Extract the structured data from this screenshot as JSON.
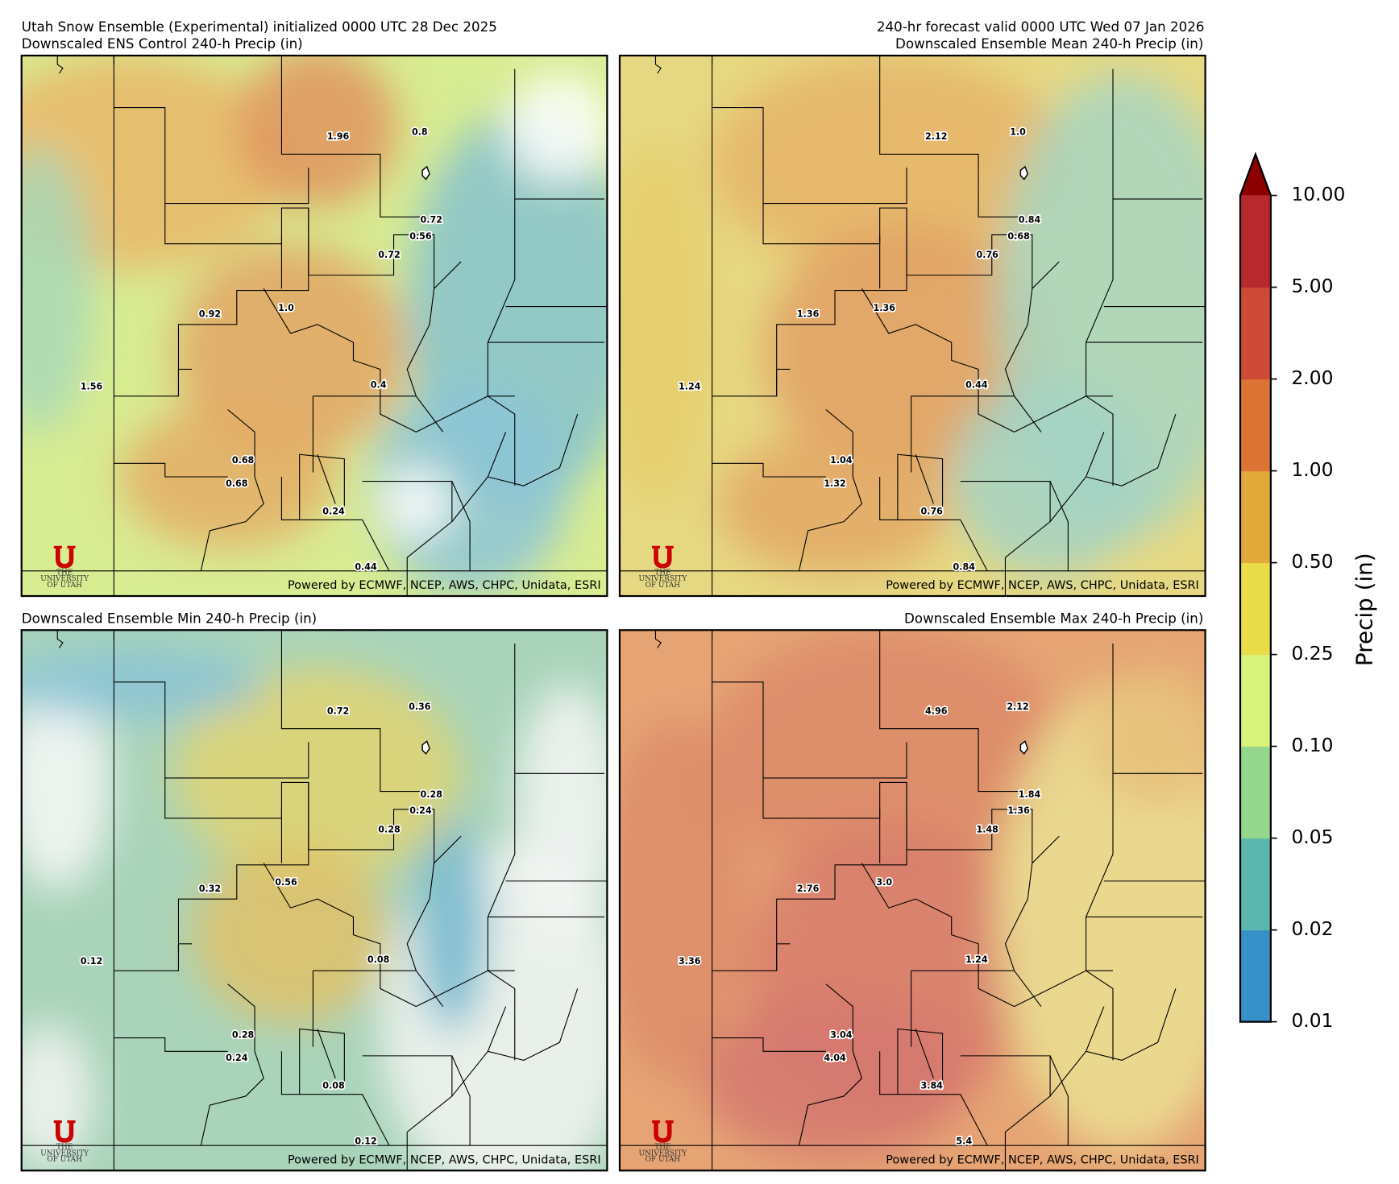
{
  "header": {
    "left": "Utah Snow Ensemble (Experimental) initialized 0000 UTC 28 Dec 2025",
    "right": "240-hr forecast valid 0000 UTC Wed 07 Jan 2026"
  },
  "attribution": "Powered by ECMWF, NCEP, AWS, CHPC, Unidata, ESRI",
  "logo": {
    "line1": "THE",
    "line2": "UNIVERSITY",
    "line3": "OF UTAH"
  },
  "panels": [
    {
      "title": "Downscaled ENS Control 240-h Precip (in)",
      "stations": [
        "1.96",
        "0.8",
        "0.72",
        "0.56",
        "0.72",
        "0.92",
        "1.0",
        "1.56",
        "0.4",
        "0.68",
        "0.68",
        "0.24",
        "0.44"
      ]
    },
    {
      "title": "Downscaled Ensemble Mean 240-h Precip (in)",
      "stations": [
        "2.12",
        "1.0",
        "0.84",
        "0.68",
        "0.76",
        "1.36",
        "1.36",
        "1.24",
        "0.44",
        "1.04",
        "1.32",
        "0.76",
        "0.84"
      ]
    },
    {
      "title": "Downscaled Ensemble Min 240-h Precip (in)",
      "stations": [
        "0.72",
        "0.36",
        "0.28",
        "0.24",
        "0.28",
        "0.32",
        "0.56",
        "0.12",
        "0.08",
        "0.28",
        "0.24",
        "0.08",
        "0.12"
      ]
    },
    {
      "title": "Downscaled Ensemble Max 240-h Precip (in)",
      "stations": [
        "4.96",
        "2.12",
        "1.84",
        "1.36",
        "1.48",
        "2.76",
        "3.0",
        "3.36",
        "1.24",
        "3.04",
        "4.04",
        "3.84",
        "5.4"
      ]
    }
  ],
  "colorbar": {
    "label": "Precip (in)",
    "ticks": [
      {
        "value": 0.01,
        "label": "0.01"
      },
      {
        "value": 0.02,
        "label": "0.02"
      },
      {
        "value": 0.05,
        "label": "0.05"
      },
      {
        "value": 0.1,
        "label": "0.10"
      },
      {
        "value": 0.25,
        "label": "0.25"
      },
      {
        "value": 0.5,
        "label": "0.50"
      },
      {
        "value": 1,
        "label": "1.00"
      },
      {
        "value": 2,
        "label": "2.00"
      },
      {
        "value": 5,
        "label": "5.00"
      },
      {
        "value": 10,
        "label": "10.00"
      }
    ],
    "colors": [
      "#3890c8",
      "#5ab7ad",
      "#93d68c",
      "#d9f27a",
      "#e8dd48",
      "#e2a838",
      "#db7434",
      "#cc4a36",
      "#b8282f"
    ],
    "extend_color": "#8b0000"
  }
}
